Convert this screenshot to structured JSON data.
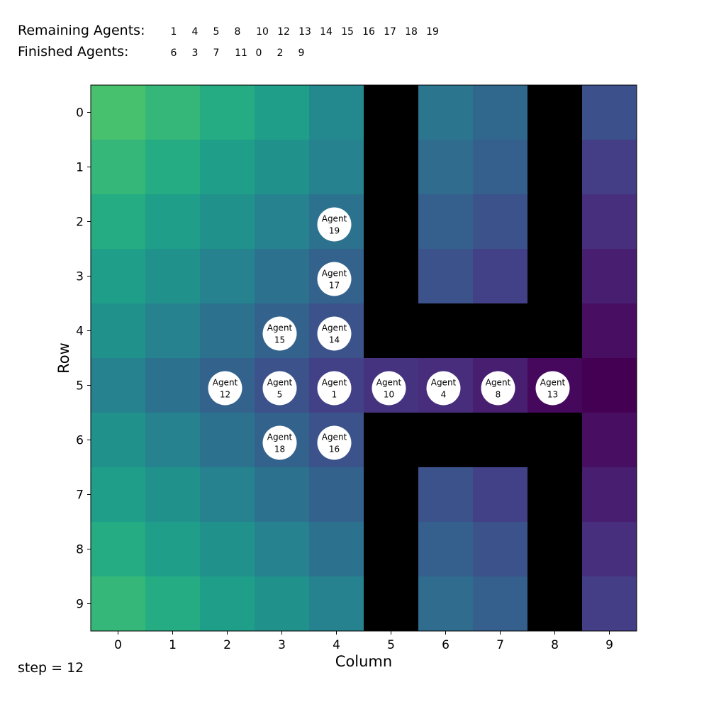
{
  "header": {
    "remaining_label": "Remaining Agents:",
    "finished_label": "Finished Agents:",
    "remaining": [
      "1",
      "4",
      "5",
      "8",
      "10",
      "12",
      "13",
      "14",
      "15",
      "16",
      "17",
      "18",
      "19"
    ],
    "finished": [
      "6",
      "3",
      "7",
      "11",
      "0",
      "2",
      "9"
    ]
  },
  "step_label": "step = 12",
  "axes": {
    "xlabel": "Column",
    "ylabel": "Row",
    "xticks": [
      "0",
      "1",
      "2",
      "3",
      "4",
      "5",
      "6",
      "7",
      "8",
      "9"
    ],
    "yticks": [
      "0",
      "1",
      "2",
      "3",
      "4",
      "5",
      "6",
      "7",
      "8",
      "9"
    ]
  },
  "grid": {
    "rows": 10,
    "cols": 10,
    "wall_color": "#000000",
    "cells": [
      [
        "#48c16e",
        "#35b779",
        "#25ac82",
        "#1f9e89",
        "#23898e",
        "#000000",
        "#2b758e",
        "#30678d",
        "#000000",
        "#3c508b"
      ],
      [
        "#35b779",
        "#25ac82",
        "#1f9e89",
        "#21918c",
        "#26828e",
        "#000000",
        "#2f6c8e",
        "#355f8d",
        "#000000",
        "#433e85"
      ],
      [
        "#25ac82",
        "#1f9e89",
        "#21918c",
        "#26828e",
        "#2c728e",
        "#000000",
        "#355f8d",
        "#3b528b",
        "#000000",
        "#472f7d"
      ],
      [
        "#1f9e89",
        "#21918c",
        "#26828e",
        "#2c728e",
        "#33638d",
        "#000000",
        "#3b528b",
        "#424086",
        "#000000",
        "#481f70"
      ],
      [
        "#21918c",
        "#26828e",
        "#2c728e",
        "#33638d",
        "#3b528b",
        "#000000",
        "#000000",
        "#000000",
        "#000000",
        "#470e61"
      ],
      [
        "#26828e",
        "#2c728e",
        "#33638d",
        "#3b528b",
        "#424086",
        "#46337f",
        "#472d7b",
        "#481f70",
        "#46085c",
        "#440154"
      ],
      [
        "#21918c",
        "#26828e",
        "#2c728e",
        "#33638d",
        "#3b528b",
        "#000000",
        "#000000",
        "#000000",
        "#000000",
        "#470e61"
      ],
      [
        "#1f9e89",
        "#21918c",
        "#26828e",
        "#2c728e",
        "#33638d",
        "#000000",
        "#3b528b",
        "#424086",
        "#000000",
        "#481f70"
      ],
      [
        "#25ac82",
        "#1f9e89",
        "#21918c",
        "#26828e",
        "#2c728e",
        "#000000",
        "#355f8d",
        "#3b528b",
        "#000000",
        "#472f7d"
      ],
      [
        "#35b779",
        "#25ac82",
        "#1f9e89",
        "#21918c",
        "#26828e",
        "#000000",
        "#2f6c8e",
        "#355f8d",
        "#000000",
        "#433e85"
      ]
    ]
  },
  "agents": [
    {
      "id": "19",
      "label": "Agent",
      "row": 2,
      "col": 4
    },
    {
      "id": "17",
      "label": "Agent",
      "row": 3,
      "col": 4
    },
    {
      "id": "15",
      "label": "Agent",
      "row": 4,
      "col": 3
    },
    {
      "id": "14",
      "label": "Agent",
      "row": 4,
      "col": 4
    },
    {
      "id": "12",
      "label": "Agent",
      "row": 5,
      "col": 2
    },
    {
      "id": "5",
      "label": "Agent",
      "row": 5,
      "col": 3
    },
    {
      "id": "1",
      "label": "Agent",
      "row": 5,
      "col": 4
    },
    {
      "id": "10",
      "label": "Agent",
      "row": 5,
      "col": 5
    },
    {
      "id": "4",
      "label": "Agent",
      "row": 5,
      "col": 6
    },
    {
      "id": "8",
      "label": "Agent",
      "row": 5,
      "col": 7
    },
    {
      "id": "13",
      "label": "Agent",
      "row": 5,
      "col": 8
    },
    {
      "id": "18",
      "label": "Agent",
      "row": 6,
      "col": 3
    },
    {
      "id": "16",
      "label": "Agent",
      "row": 6,
      "col": 4
    }
  ]
}
